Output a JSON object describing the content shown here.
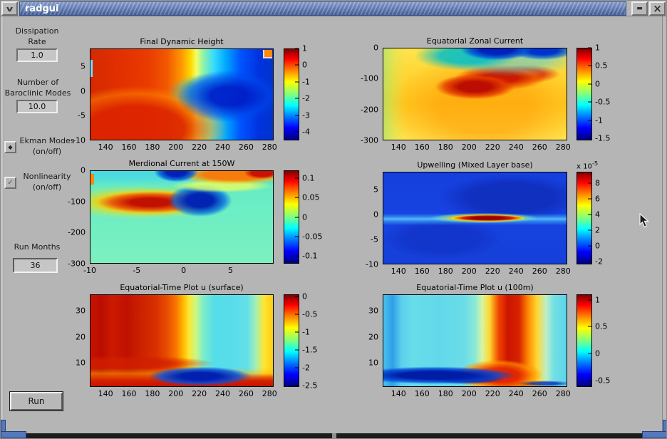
{
  "window": {
    "title": "radgui",
    "minimize_label": "minimize",
    "close_label": "close"
  },
  "icons": {
    "window_menu": "v",
    "minimize": "▬",
    "close": "×",
    "ekman_toggle": "◆",
    "nonlinearity_toggle": "✓"
  },
  "colors": {
    "titlebar_blue": "#4f6fb2",
    "background_grey": "#b5b5b5",
    "corner_handle_blue": "#5578bb",
    "frame_bottom_dark": "#1c1c1c"
  },
  "sidebar": {
    "dissipation_label": "Dissipation\nRate",
    "dissipation_value": "1.0",
    "modes_label": "Number of\nBaroclinic Modes",
    "modes_value": "10.0",
    "ekman_label": "Ekman Modes\n(on/off)",
    "nonlinearity_label": "Nonlinearity\n(on/off)",
    "run_months_label": "Run Months",
    "run_months_value": "36",
    "run_button": "Run"
  },
  "chart_data": [
    {
      "type": "heatmap",
      "title": "Final Dynamic Height",
      "xlim": [
        126.5,
        283.5
      ],
      "ylim": [
        8.6,
        -10
      ],
      "x_ticks": [
        140,
        160,
        180,
        200,
        220,
        240,
        260,
        280
      ],
      "y_ticks": [
        5,
        0,
        -5,
        -10
      ],
      "colorbar": {
        "range": [
          1,
          -4.5
        ],
        "ticks": [
          1,
          0,
          -1,
          -2,
          -3,
          -4
        ]
      },
      "pattern": "warm red-orange in west, yellow transition band curving through mid-basin, cold blue east with dark-blue core near 250-270E about the equator, small orange patch top-right corner"
    },
    {
      "type": "heatmap",
      "title": "Equatorial Zonal Current",
      "xlim": [
        126.5,
        283.5
      ],
      "ylim": [
        0,
        -300
      ],
      "x_ticks": [
        140,
        160,
        180,
        200,
        220,
        240,
        260,
        280
      ],
      "y_ticks": [
        0,
        -100,
        -200,
        -300
      ],
      "colorbar": {
        "range": [
          1,
          -1.55
        ],
        "ticks": [
          1,
          0.5,
          0,
          -0.5,
          -1,
          -1.5
        ]
      },
      "pattern": "westward (cyan/dark-blue) surface flow near top between 190E and 280E; strong eastward dark-red undercurrent core sloping upward from 190E at -130m to 260E at -70m over yellow-orange background"
    },
    {
      "type": "heatmap",
      "title": "Merdional Current at 150W",
      "xlim": [
        -10,
        9.6
      ],
      "ylim": [
        0,
        -300
      ],
      "x_ticks": [
        -10,
        -5,
        0,
        5
      ],
      "y_ticks": [
        0,
        -100,
        -200,
        -300
      ],
      "colorbar": {
        "range": [
          0.12,
          -0.12
        ],
        "ticks": [
          0.1,
          0.05,
          0,
          -0.05,
          -0.1
        ]
      },
      "pattern": "green-teal background; red poleward wedge south of equator near -100m widening toward 0; dark-blue cell just north of equator at -100m; surface cyan band with dark-blue at equator and red-orange band to the north"
    },
    {
      "type": "heatmap",
      "title": "Upwelling (Mixed Layer base)",
      "xlim": [
        126.5,
        283.5
      ],
      "ylim": [
        8.6,
        -10
      ],
      "x_ticks": [
        140,
        160,
        180,
        200,
        220,
        240,
        260,
        280
      ],
      "y_ticks": [
        5,
        0,
        -5,
        -10
      ],
      "colorbar": {
        "range": [
          9.5,
          -2.4
        ],
        "ticks": [
          8,
          6,
          4,
          2,
          0,
          -2
        ],
        "exp_base": "x 10",
        "exp_power": "-5"
      },
      "pattern": "deep blue background with thin cyan line along equator and intense dark-red upwelling tongue on the equator from 200E to 245E with yellow fringe"
    },
    {
      "type": "heatmap",
      "title": "Equatorial-Time Plot u (surface)",
      "xlim": [
        126.5,
        283.5
      ],
      "ylim": [
        36.5,
        0.5
      ],
      "x_ticks": [
        140,
        160,
        180,
        200,
        220,
        240,
        260,
        280
      ],
      "y_ticks": [
        30,
        20,
        10
      ],
      "colorbar": {
        "range": [
          0.05,
          -2.55
        ],
        "ticks": [
          0,
          -0.5,
          -1,
          -1.5,
          -2,
          -2.5
        ]
      },
      "pattern": "dark-red western half in vertical bands, yellow transition near 210E, cyan eastern half with dark-blue pocket near 230-260E during first months, red band across earliest months, yellow column at far east"
    },
    {
      "type": "heatmap",
      "title": "Equatorial-Time Plot u (100m)",
      "xlim": [
        126.5,
        283.5
      ],
      "ylim": [
        36.5,
        0.5
      ],
      "x_ticks": [
        140,
        160,
        180,
        200,
        220,
        240,
        260,
        280
      ],
      "y_ticks": [
        30,
        20,
        10
      ],
      "colorbar": {
        "range": [
          1.1,
          -0.62
        ],
        "ticks": [
          1,
          0.5,
          0,
          -0.5
        ]
      },
      "pattern": "cyan-blue west, strong dark-red eastward column 215-250E persisting through all months flanked by yellow-orange, dark-blue band during first months west of 205E"
    }
  ]
}
